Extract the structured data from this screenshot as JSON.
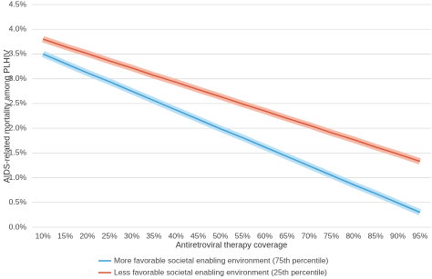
{
  "chart_data": {
    "type": "line",
    "x_label": "Antiretroviral therapy coverage",
    "y_label": "AIDS-related mortality among PLHIV",
    "categories": [
      "10%",
      "15%",
      "20%",
      "25%",
      "30%",
      "35%",
      "40%",
      "45%",
      "50%",
      "55%",
      "60%",
      "65%",
      "70%",
      "75%",
      "80%",
      "85%",
      "90%",
      "95%"
    ],
    "series": [
      {
        "name": "More favorable societal enabling environment (75th percentile)",
        "color": "#3b9dd6",
        "band_color": "#b9e0f4",
        "values": [
          3.5,
          3.31,
          3.12,
          2.94,
          2.75,
          2.56,
          2.37,
          2.18,
          1.99,
          1.81,
          1.62,
          1.43,
          1.24,
          1.05,
          0.86,
          0.68,
          0.49,
          0.3
        ]
      },
      {
        "name": "Less favorable societal enabling environment (25th percentile)",
        "color": "#d9563a",
        "band_color": "#f5bba8",
        "values": [
          3.8,
          3.65,
          3.51,
          3.36,
          3.22,
          3.07,
          2.93,
          2.78,
          2.64,
          2.49,
          2.35,
          2.2,
          2.06,
          1.91,
          1.77,
          1.62,
          1.48,
          1.33
        ]
      }
    ],
    "ylim": [
      0,
      4.5
    ],
    "yticks": [
      {
        "value": 0,
        "label": "0.0%"
      },
      {
        "value": 0.5,
        "label": "0.5%"
      },
      {
        "value": 1,
        "label": "1.0%"
      },
      {
        "value": 1.5,
        "label": "1.5%"
      },
      {
        "value": 2,
        "label": "2.0%"
      },
      {
        "value": 2.5,
        "label": "2.5%"
      },
      {
        "value": 3,
        "label": "3.0%"
      },
      {
        "value": 3.5,
        "label": "3.5%"
      },
      {
        "value": 4,
        "label": "4.0%"
      },
      {
        "value": 4.5,
        "label": "4.5%"
      }
    ],
    "grid": true
  }
}
